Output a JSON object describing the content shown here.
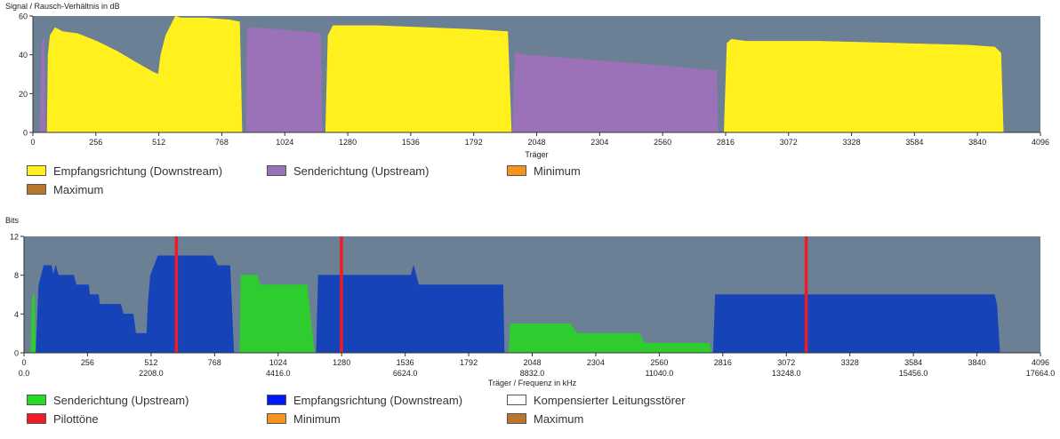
{
  "chart_data": [
    {
      "type": "area",
      "ylabel": "Signal / Rausch-Verhältnis in dB",
      "xlabel": "Träger",
      "xlim": [
        0,
        4096
      ],
      "ylim": [
        0,
        60
      ],
      "yticks": [
        "0",
        "20",
        "40",
        "60"
      ],
      "xticks": [
        "0",
        "256",
        "512",
        "768",
        "1024",
        "1280",
        "1536",
        "1792",
        "2048",
        "2304",
        "2560",
        "2816",
        "3072",
        "3328",
        "3584",
        "3840",
        "4096"
      ],
      "grid": false,
      "background": "#6b7f95",
      "series": [
        {
          "name": "Empfangsrichtung (Downstream)",
          "color": "#fff01e",
          "segments": [
            [
              [
                58,
                0
              ],
              [
                62,
                40
              ],
              [
                70,
                50
              ],
              [
                90,
                54
              ],
              [
                120,
                52
              ],
              [
                180,
                51
              ],
              [
                260,
                47
              ],
              [
                340,
                42
              ],
              [
                420,
                36
              ],
              [
                490,
                31
              ],
              [
                510,
                30
              ],
              [
                520,
                40
              ],
              [
                540,
                50
              ],
              [
                560,
                55
              ],
              [
                580,
                60
              ],
              [
                600,
                59
              ],
              [
                700,
                59
              ],
              [
                800,
                58
              ],
              [
                840,
                57
              ],
              [
                850,
                0
              ]
            ],
            [
              [
                1190,
                0
              ],
              [
                1200,
                50
              ],
              [
                1220,
                55
              ],
              [
                1400,
                55
              ],
              [
                1600,
                54
              ],
              [
                1800,
                53
              ],
              [
                1930,
                52
              ],
              [
                1945,
                0
              ]
            ],
            [
              [
                2810,
                0
              ],
              [
                2822,
                46
              ],
              [
                2840,
                48
              ],
              [
                2900,
                47
              ],
              [
                3200,
                47
              ],
              [
                3500,
                46
              ],
              [
                3800,
                45
              ],
              [
                3910,
                44
              ],
              [
                3935,
                41
              ],
              [
                3945,
                0
              ]
            ]
          ]
        },
        {
          "name": "Senderichtung (Upstream)",
          "color": "#9b72b8",
          "segments": [
            [
              [
                30,
                0
              ],
              [
                34,
                40
              ],
              [
                40,
                48
              ],
              [
                46,
                48
              ],
              [
                50,
                0
              ]
            ],
            [
              [
                868,
                0
              ],
              [
                872,
                54
              ],
              [
                900,
                54
              ],
              [
                1000,
                53
              ],
              [
                1100,
                52
              ],
              [
                1170,
                51
              ],
              [
                1175,
                0
              ]
            ],
            [
              [
                1950,
                0
              ],
              [
                1960,
                41
              ],
              [
                2000,
                40
              ],
              [
                2200,
                38
              ],
              [
                2400,
                36
              ],
              [
                2600,
                34
              ],
              [
                2750,
                32
              ],
              [
                2780,
                32
              ],
              [
                2785,
                0
              ]
            ]
          ]
        },
        {
          "name": "Minimum",
          "color": "#f7941d",
          "segments": []
        },
        {
          "name": "Maximum",
          "color": "#b8762e",
          "segments": []
        }
      ],
      "legend": [
        {
          "label": "Empfangsrichtung (Downstream)",
          "color": "#fff01e"
        },
        {
          "label": "Senderichtung (Upstream)",
          "color": "#9b72b8"
        },
        {
          "label": "Minimum",
          "color": "#f7941d"
        },
        {
          "label": "Maximum",
          "color": "#b8762e"
        }
      ]
    },
    {
      "type": "area",
      "ylabel": "Bits",
      "xlabel": "Träger / Frequenz in kHz",
      "xlim": [
        0,
        4096
      ],
      "ylim": [
        0,
        12
      ],
      "yticks": [
        "0",
        "4",
        "8",
        "12"
      ],
      "xticks": [
        "0",
        "256",
        "512",
        "768",
        "1024",
        "1280",
        "1536",
        "1792",
        "2048",
        "2304",
        "2560",
        "2816",
        "3072",
        "3328",
        "3584",
        "3840",
        "4096"
      ],
      "xticks_secondary": [
        {
          "x": 0,
          "label": "0.0"
        },
        {
          "x": 512,
          "label": "2208.0"
        },
        {
          "x": 1024,
          "label": "4416.0"
        },
        {
          "x": 1536,
          "label": "6624.0"
        },
        {
          "x": 2048,
          "label": "8832.0"
        },
        {
          "x": 2560,
          "label": "11040.0"
        },
        {
          "x": 3072,
          "label": "13248.0"
        },
        {
          "x": 3584,
          "label": "15456.0"
        },
        {
          "x": 4096,
          "label": "17664.0"
        }
      ],
      "grid": false,
      "background": "#6b7f95",
      "series": [
        {
          "name": "Senderichtung (Upstream)",
          "color": "#2ecc2e",
          "segments": [
            [
              [
                28,
                0
              ],
              [
                32,
                5
              ],
              [
                36,
                6
              ],
              [
                42,
                6
              ],
              [
                46,
                0
              ]
            ],
            [
              [
                870,
                0
              ],
              [
                874,
                8
              ],
              [
                940,
                8
              ],
              [
                950,
                7
              ],
              [
                1140,
                7
              ],
              [
                1170,
                0
              ]
            ],
            [
              [
                1955,
                0
              ],
              [
                1960,
                3
              ],
              [
                2200,
                3
              ],
              [
                2230,
                2
              ],
              [
                2480,
                2
              ],
              [
                2500,
                1
              ],
              [
                2760,
                1
              ],
              [
                2770,
                0
              ]
            ]
          ]
        },
        {
          "name": "Empfangsrichtung (Downstream)",
          "color": "#1644b8",
          "segments": [
            [
              [
                48,
                0
              ],
              [
                60,
                7
              ],
              [
                80,
                9
              ],
              [
                110,
                9
              ],
              [
                118,
                8
              ],
              [
                128,
                9
              ],
              [
                138,
                8
              ],
              [
                200,
                8
              ],
              [
                210,
                7
              ],
              [
                260,
                7
              ],
              [
                265,
                6
              ],
              [
                300,
                6
              ],
              [
                305,
                5
              ],
              [
                390,
                5
              ],
              [
                400,
                4
              ],
              [
                440,
                4
              ],
              [
                450,
                2
              ],
              [
                495,
                2
              ],
              [
                500,
                5
              ],
              [
                510,
                8
              ],
              [
                525,
                9
              ],
              [
                540,
                10
              ],
              [
                760,
                10
              ],
              [
                780,
                9
              ],
              [
                830,
                9
              ],
              [
                845,
                0
              ]
            ],
            [
              [
                1178,
                0
              ],
              [
                1186,
                8
              ],
              [
                1560,
                8
              ],
              [
                1570,
                9
              ],
              [
                1580,
                8
              ],
              [
                1590,
                7
              ],
              [
                1930,
                7
              ],
              [
                1935,
                0
              ]
            ],
            [
              [
                2778,
                0
              ],
              [
                2786,
                6
              ],
              [
                3910,
                6
              ],
              [
                3920,
                5
              ],
              [
                3932,
                0
              ]
            ]
          ]
        },
        {
          "name": "Kompensierter Leitungsstörer",
          "color": "#ffffff",
          "segments": []
        },
        {
          "name": "Pilottöne",
          "color": "#ee1c24",
          "lines": [
            614,
            1279,
            3152
          ]
        },
        {
          "name": "Minimum",
          "color": "#f7941d",
          "segments": []
        },
        {
          "name": "Maximum",
          "color": "#b8762e",
          "segments": []
        }
      ],
      "legend": [
        {
          "label": "Senderichtung (Upstream)",
          "color": "#22dd22"
        },
        {
          "label": "Empfangsrichtung (Downstream)",
          "color": "#0018ff"
        },
        {
          "label": "Kompensierter Leitungsstörer",
          "color": "#ffffff"
        },
        {
          "label": "Pilottöne",
          "color": "#ee1c24"
        },
        {
          "label": "Minimum",
          "color": "#f7941d"
        },
        {
          "label": "Maximum",
          "color": "#b8762e"
        }
      ]
    }
  ]
}
